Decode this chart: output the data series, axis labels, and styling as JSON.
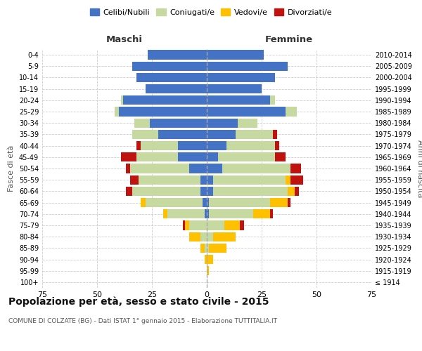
{
  "age_groups": [
    "100+",
    "95-99",
    "90-94",
    "85-89",
    "80-84",
    "75-79",
    "70-74",
    "65-69",
    "60-64",
    "55-59",
    "50-54",
    "45-49",
    "40-44",
    "35-39",
    "30-34",
    "25-29",
    "20-24",
    "15-19",
    "10-14",
    "5-9",
    "0-4"
  ],
  "birth_years": [
    "≤ 1914",
    "1915-1919",
    "1920-1924",
    "1925-1929",
    "1930-1934",
    "1935-1939",
    "1940-1944",
    "1945-1949",
    "1950-1954",
    "1955-1959",
    "1960-1964",
    "1965-1969",
    "1970-1974",
    "1975-1979",
    "1980-1984",
    "1985-1989",
    "1990-1994",
    "1995-1999",
    "2000-2004",
    "2005-2009",
    "2010-2014"
  ],
  "maschi": {
    "celibi": [
      0,
      0,
      0,
      0,
      0,
      0,
      1,
      2,
      3,
      3,
      8,
      13,
      13,
      22,
      26,
      40,
      38,
      28,
      32,
      34,
      27
    ],
    "coniugati": [
      0,
      0,
      0,
      1,
      3,
      8,
      17,
      26,
      31,
      28,
      27,
      19,
      17,
      12,
      7,
      2,
      1,
      0,
      0,
      0,
      0
    ],
    "vedovi": [
      0,
      0,
      1,
      2,
      5,
      2,
      2,
      2,
      0,
      0,
      0,
      0,
      0,
      0,
      0,
      0,
      0,
      0,
      0,
      0,
      0
    ],
    "divorziati": [
      0,
      0,
      0,
      0,
      0,
      1,
      0,
      0,
      3,
      4,
      2,
      7,
      2,
      0,
      0,
      0,
      0,
      0,
      0,
      0,
      0
    ]
  },
  "femmine": {
    "nubili": [
      0,
      0,
      0,
      0,
      0,
      0,
      1,
      1,
      3,
      3,
      7,
      5,
      9,
      13,
      14,
      36,
      29,
      25,
      31,
      37,
      26
    ],
    "coniugate": [
      0,
      0,
      0,
      1,
      3,
      8,
      20,
      28,
      34,
      33,
      31,
      26,
      22,
      17,
      9,
      5,
      2,
      0,
      0,
      0,
      0
    ],
    "vedove": [
      0,
      1,
      3,
      8,
      10,
      7,
      8,
      8,
      3,
      2,
      0,
      0,
      0,
      0,
      0,
      0,
      0,
      0,
      0,
      0,
      0
    ],
    "divorziate": [
      0,
      0,
      0,
      0,
      0,
      2,
      1,
      1,
      2,
      6,
      5,
      5,
      2,
      2,
      0,
      0,
      0,
      0,
      0,
      0,
      0
    ]
  },
  "color_celibi": "#4472c4",
  "color_coniugati": "#c5d9a0",
  "color_vedovi": "#ffc000",
  "color_divorziati": "#c0130f",
  "title": "Popolazione per età, sesso e stato civile - 2015",
  "subtitle": "COMUNE DI COLZATE (BG) - Dati ISTAT 1° gennaio 2015 - Elaborazione TUTTITALIA.IT",
  "xlabel_left": "Maschi",
  "xlabel_right": "Femmine",
  "ylabel_left": "Fasce di età",
  "ylabel_right": "Anni di nascita",
  "xlim": 75,
  "bg_color": "#ffffff",
  "grid_color": "#cccccc"
}
